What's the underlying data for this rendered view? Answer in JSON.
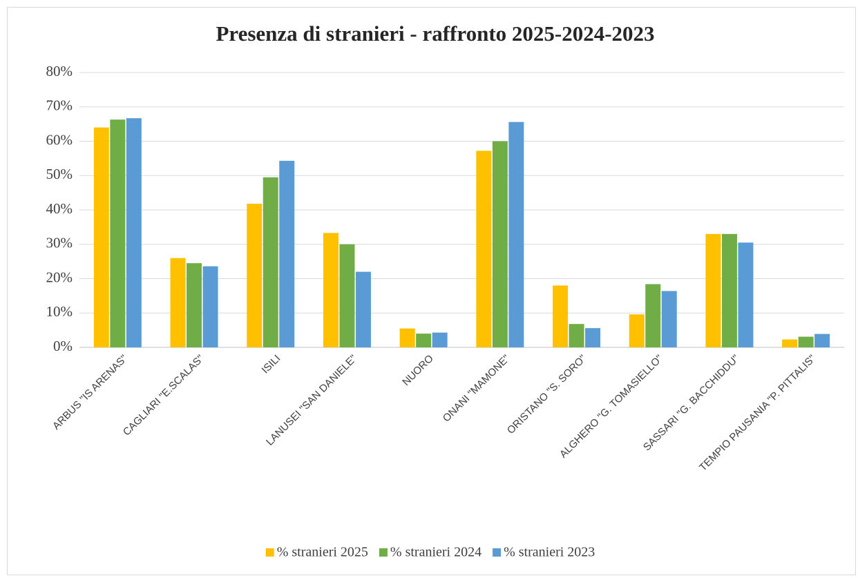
{
  "chart_data": {
    "type": "bar",
    "title": "Presenza di stranieri - raffronto 2025-2024-2023",
    "categories": [
      "ARBUS \"IS ARENAS\"",
      "CAGLIARI \"E.SCALAS\"",
      "ISILI",
      "LANUSEI \"SAN DANIELE\"",
      "NUORO",
      "ONANI \"MAMONE\"",
      "ORISTANO \"S. SORO\"",
      "ALGHERO \"G. TOMASIELLO\"",
      "SASSARI \"G. BACCHIDDU\"",
      "TEMPIO PAUSANIA \"P. PITTALIS\""
    ],
    "series": [
      {
        "name": "% stranieri 2025",
        "color": "#ffc000",
        "values": [
          64,
          26,
          41.8,
          33.3,
          5.5,
          57.2,
          18,
          9.6,
          33,
          2.3
        ]
      },
      {
        "name": "% stranieri 2024",
        "color": "#70ad47",
        "values": [
          66.3,
          24.5,
          49.5,
          30,
          4,
          60,
          6.8,
          18.4,
          33,
          3.1
        ]
      },
      {
        "name": "% stranieri 2023",
        "color": "#5b9bd5",
        "values": [
          66.7,
          23.6,
          54.3,
          22,
          4.3,
          65.6,
          5.6,
          16.4,
          30.5,
          3.9
        ]
      }
    ],
    "ylim": [
      0,
      80
    ],
    "yticks": [
      {
        "value": 0,
        "label": "0%"
      },
      {
        "value": 10,
        "label": "10%"
      },
      {
        "value": 20,
        "label": "20%"
      },
      {
        "value": 30,
        "label": "30%"
      },
      {
        "value": 40,
        "label": "40%"
      },
      {
        "value": 50,
        "label": "50%"
      },
      {
        "value": 60,
        "label": "60%"
      },
      {
        "value": 70,
        "label": "70%"
      },
      {
        "value": 80,
        "label": "80%"
      }
    ],
    "grid": true,
    "legend": "bottom"
  }
}
